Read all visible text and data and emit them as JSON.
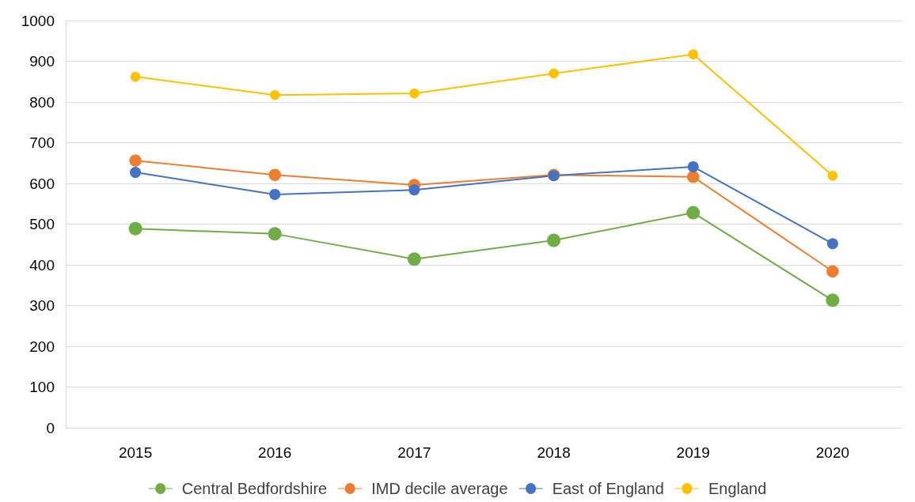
{
  "chart_data": {
    "type": "line",
    "categories": [
      "2015",
      "2016",
      "2017",
      "2018",
      "2019",
      "2020"
    ],
    "series": [
      {
        "name": "Central Bedfordshire",
        "color": "#70ad47",
        "values": [
          489,
          476,
          414,
          460,
          528,
          313
        ]
      },
      {
        "name": "IMD decile average",
        "color": "#ed7d31",
        "values": [
          656,
          621,
          596,
          621,
          616,
          384
        ]
      },
      {
        "name": "East of England",
        "color": "#4472c4",
        "values": [
          627,
          573,
          584,
          619,
          641,
          452
        ]
      },
      {
        "name": "England",
        "color": "#ffc000",
        "values": [
          862,
          817,
          821,
          870,
          917,
          619
        ]
      }
    ],
    "ylim": [
      0,
      1000
    ],
    "yticks": [
      0,
      100,
      200,
      300,
      400,
      500,
      600,
      700,
      800,
      900,
      1000
    ],
    "grid": "y",
    "legend": "bottom",
    "marker": "circle",
    "line_style": "solid"
  }
}
